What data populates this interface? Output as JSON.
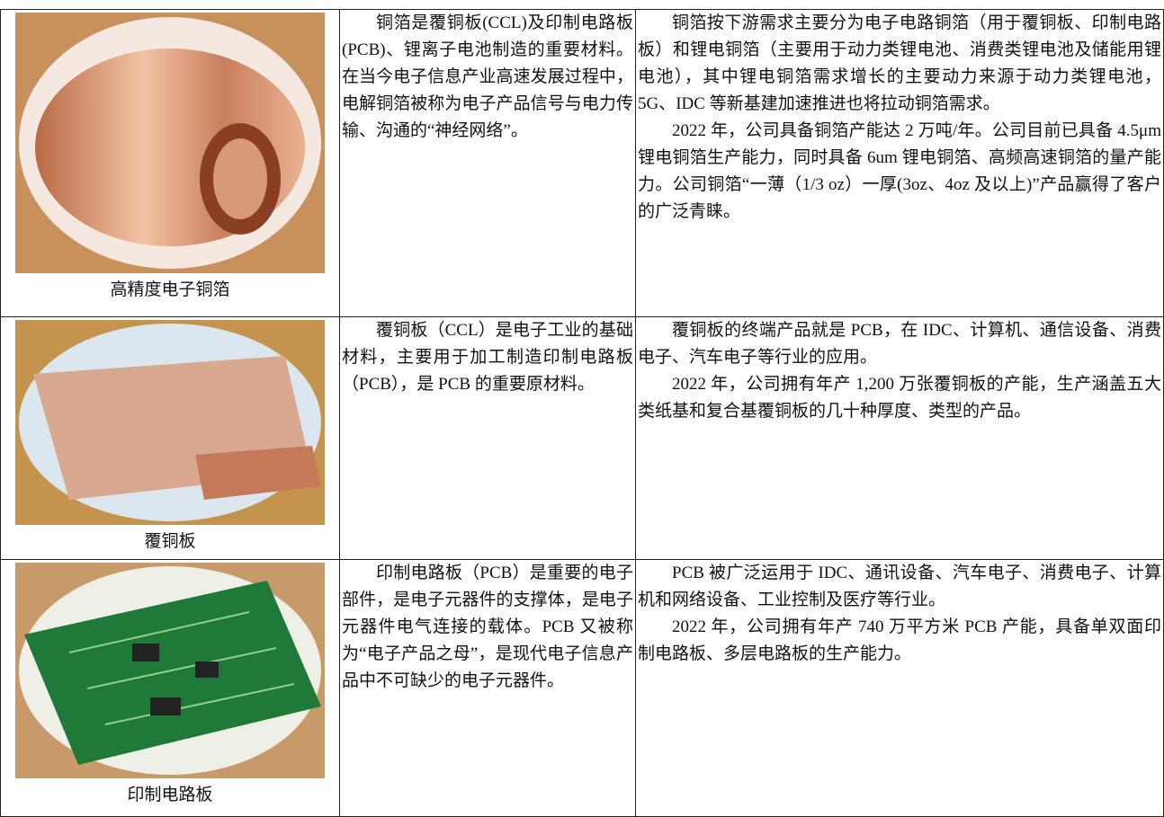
{
  "table": {
    "rows": [
      {
        "caption": "高精度电子铜箔",
        "description": "铜箔是覆铜板(CCL)及印制电路板(PCB)、锂离子电池制造的重要材料。在当今电子信息产业高速发展过程中，电解铜箔被称为电子产品信号与电力传输、沟通的“神经网络”。",
        "details": [
          "铜箔按下游需求主要分为电子电路铜箔（用于覆铜板、印制电路板）和锂电铜箔（主要用于动力类锂电池、消费类锂电池及储能用锂电池），其中锂电铜箔需求增长的主要动力来源于动力类锂电池，5G、IDC 等新基建加速推进也将拉动铜箔需求。",
          "2022 年，公司具备铜箔产能达 2 万吨/年。公司目前已具备 4.5μm 锂电铜箔生产能力，同时具备 6um 锂电铜箔、高频高速铜箔的量产能力。公司铜箔“一薄（1/3 oz）一厚(3oz、4oz 及以上)”产品赢得了客户的广泛青睐。"
        ]
      },
      {
        "caption": "覆铜板",
        "description": "覆铜板（CCL）是电子工业的基础材料，主要用于加工制造印制电路板（PCB），是 PCB 的重要原材料。",
        "details": [
          "覆铜板的终端产品就是 PCB，在 IDC、计算机、通信设备、消费电子、汽车电子等行业的应用。",
          "2022 年，公司拥有年产 1,200 万张覆铜板的产能，生产涵盖五大类纸基和复合基覆铜板的几十种厚度、类型的产品。"
        ]
      },
      {
        "caption": "印制电路板",
        "description": "印制电路板（PCB）是重要的电子部件，是电子元器件的支撑体，是电子元器件电气连接的载体。PCB 又被称为“电子产品之母”，是现代电子信息产品中不可缺少的电子元器件。",
        "details": [
          "PCB 被广泛运用于 IDC、通讯设备、汽车电子、消费电子、计算机和网络设备、工业控制及医疗等行业。",
          "2022 年，公司拥有年产 740 万平方米 PCB 产能，具备单双面印制电路板、多层电路板的生产能力。"
        ]
      }
    ]
  }
}
